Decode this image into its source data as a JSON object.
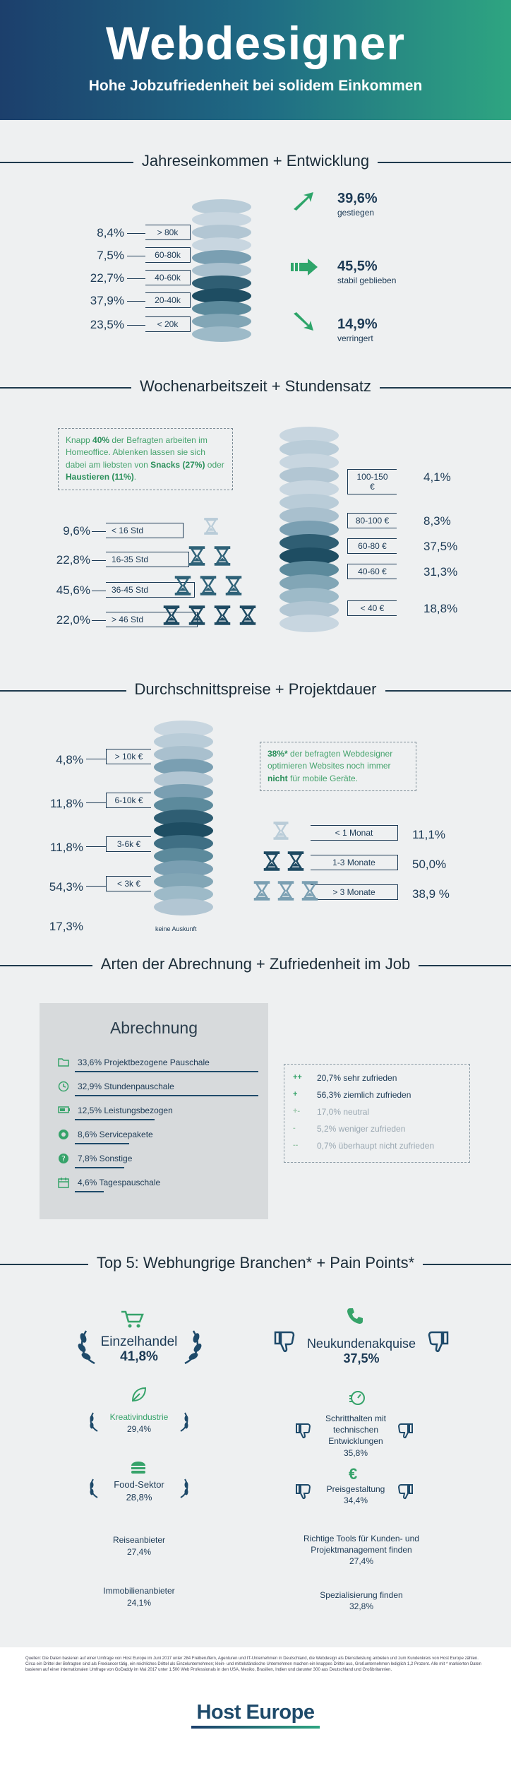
{
  "header": {
    "title": "Webdesigner",
    "subtitle": "Hohe Jobzufriedenheit bei solidem Einkommen"
  },
  "income": {
    "title": "Jahreseinkommen + Entwicklung",
    "rows": [
      {
        "pct": "8,4%",
        "label": "> 80k"
      },
      {
        "pct": "7,5%",
        "label": "60-80k"
      },
      {
        "pct": "22,7%",
        "label": "40-60k"
      },
      {
        "pct": "37,9%",
        "label": "20-40k"
      },
      {
        "pct": "23,5%",
        "label": "< 20k"
      }
    ],
    "trends": [
      {
        "value": "39,6%",
        "label": "gestiegen"
      },
      {
        "value": "45,5%",
        "label": "stabil geblieben"
      },
      {
        "value": "14,9%",
        "label": "verringert"
      }
    ]
  },
  "work": {
    "title": "Wochenarbeitszeit + Stundensatz",
    "note_parts": [
      "Knapp ",
      "40%",
      " der Befragten arbeiten im Homeoffice. Ablenken lassen sie sich dabei am liebsten von ",
      "Snacks (27%)",
      " oder ",
      "Haustieren (11%)",
      "."
    ],
    "hours": [
      {
        "pct": "9,6%",
        "label": "< 16 Std"
      },
      {
        "pct": "22,8%",
        "label": "16-35 Std"
      },
      {
        "pct": "45,6%",
        "label": "36-45 Std"
      },
      {
        "pct": "22,0%",
        "label": "> 46 Std"
      }
    ],
    "rates": [
      {
        "label": "100-150 €",
        "pct": "4,1%"
      },
      {
        "label": "80-100 €",
        "pct": "8,3%"
      },
      {
        "label": "60-80 €",
        "pct": "37,5%"
      },
      {
        "label": "40-60 €",
        "pct": "31,3%"
      },
      {
        "label": "< 40 €",
        "pct": "18,8%"
      }
    ]
  },
  "prices": {
    "title": "Durchschnittspreise + Projektdauer",
    "rows": [
      {
        "pct": "4,8%",
        "label": "> 10k €"
      },
      {
        "pct": "11,8%",
        "label": "6-10k €"
      },
      {
        "pct": "11,8%",
        "label": "3-6k €"
      },
      {
        "pct": "54,3%",
        "label": "< 3k €"
      },
      {
        "pct": "17,3%",
        "label": "keine Auskunft"
      }
    ],
    "note_parts": [
      "38%*",
      " der befragten Webdesigner optimieren Websites noch immer ",
      "nicht",
      " für mobile Geräte."
    ],
    "durations": [
      {
        "label": "< 1 Monat",
        "pct": "11,1%"
      },
      {
        "label": "1-3 Monate",
        "pct": "50,0%"
      },
      {
        "label": "> 3 Monate",
        "pct": "38,9 %"
      }
    ]
  },
  "billing": {
    "title": "Arten der Abrechnung + Zufriedenheit im Job",
    "box_title": "Abrechnung",
    "items": [
      {
        "text": "33,6% Projektbezogene Pauschale",
        "share": 0.336,
        "icon": "folder-icon"
      },
      {
        "text": "32,9% Stundenpauschale",
        "share": 0.329,
        "icon": "clock-icon"
      },
      {
        "text": "12,5% Leistungsbezogen",
        "share": 0.125,
        "icon": "battery-icon"
      },
      {
        "text": "8,6% Servicepakete",
        "share": 0.086,
        "icon": "package-icon"
      },
      {
        "text": "7,8% Sonstige",
        "share": 0.078,
        "icon": "question-icon"
      },
      {
        "text": "4,6% Tagespauschale",
        "share": 0.046,
        "icon": "calendar-icon"
      }
    ],
    "satisfaction": [
      {
        "sym": "++",
        "text": "20,7% sehr zufrieden"
      },
      {
        "sym": "+",
        "text": "56,3% ziemlich zufrieden"
      },
      {
        "sym": "+-",
        "text": "17,0% neutral"
      },
      {
        "sym": "-",
        "text": "5,2% weniger zufrieden"
      },
      {
        "sym": "--",
        "text": "0,7% überhaupt nicht zufrieden"
      }
    ]
  },
  "top5": {
    "title": "Top 5:  Webhungrige Branchen* + Pain Points*",
    "industries": [
      {
        "name": "Einzelhandel",
        "pct": "41,8%"
      },
      {
        "name": "Kreativindustrie",
        "pct": "29,4%"
      },
      {
        "name": "Food-Sektor",
        "pct": "28,8%"
      },
      {
        "name": "Reiseanbieter",
        "pct": "27,4%"
      },
      {
        "name": "Immobilienanbieter",
        "pct": "24,1%"
      }
    ],
    "pains": [
      {
        "name": "Neukundenakquise",
        "pct": "37,5%"
      },
      {
        "name": "Schritthalten mit technischen Entwicklungen",
        "pct": "35,8%"
      },
      {
        "name": "Preisgestaltung",
        "pct": "34,4%"
      },
      {
        "name": "Richtige Tools für Kunden- und Projektmanagement finden",
        "pct": "27,4%"
      },
      {
        "name": "Spezialisierung finden",
        "pct": "32,8%"
      }
    ]
  },
  "footer": {
    "sources": "Quellen: Die Daten basieren auf einer Umfrage von Host Europe im Juni 2017 unter 284 Freiberuflern, Agenturen und IT-Unternehmen in Deutschland, die Webdesign als Dienstleistung anbieten und zum Kundenkreis von Host Europe zählen. Circa ein Drittel der Befragten sind als Freelancer tätig, ein reichliches Drittel als Einzelunternehmen; klein- und mittelständische Unternehmen machen ein knappes Drittel aus, Großunternehmen lediglich 1,2 Prozent. Alle mit * markierten Daten basieren auf einer internationalen Umfrage von GoDaddy im Mai 2017 unter 1.500 Web Professionals in den USA, Mexiko, Brasilien, Indien und darunter 300 aus Deutschland und Großbritannien.",
    "logo": "Host Europe"
  }
}
